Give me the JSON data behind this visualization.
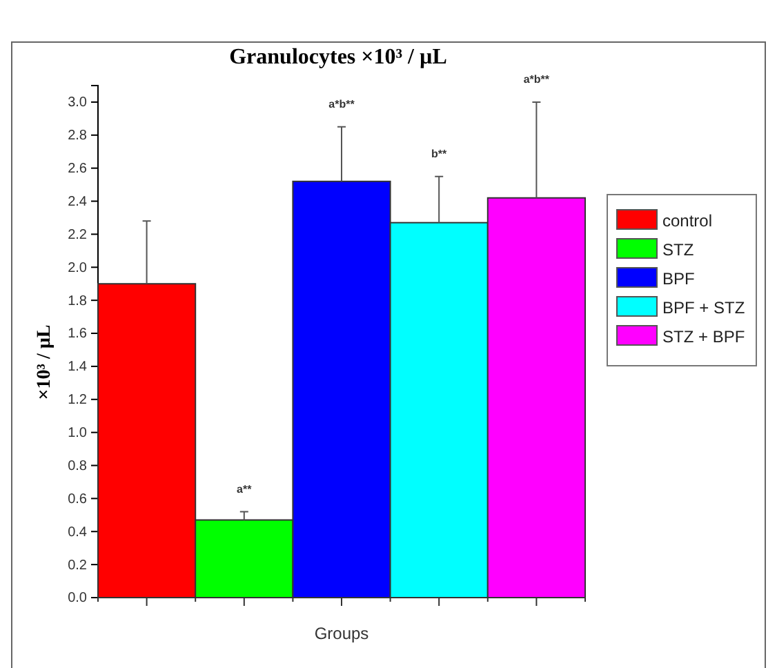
{
  "chart_data": {
    "type": "bar",
    "title": "Granulocytes  ×10³ / µL",
    "xlabel": "Groups",
    "ylabel": "×10³ / µL",
    "categories": [
      null
    ],
    "series": [
      {
        "name": "control",
        "color": "#ff0000",
        "values": [
          1.9
        ],
        "errors": [
          0.38
        ]
      },
      {
        "name": "STZ",
        "color": "#00ff00",
        "values": [
          0.47
        ],
        "errors": [
          0.05
        ]
      },
      {
        "name": "BPF",
        "color": "#0000ff",
        "values": [
          2.52
        ],
        "errors": [
          0.33
        ]
      },
      {
        "name": "BPF + STZ",
        "color": "#00ffff",
        "values": [
          2.27
        ],
        "errors": [
          0.28
        ]
      },
      {
        "name": "STZ + BPF",
        "color": "#ff00ff",
        "values": [
          2.42
        ],
        "errors": [
          0.58
        ]
      }
    ],
    "annotations": [
      "a**",
      "a*b**",
      "b**",
      "a*b**"
    ],
    "ylim": [
      0,
      3.1
    ],
    "yticks": [
      {
        "value": 0,
        "label": "0.0"
      },
      0.2,
      0.4,
      0.6,
      0.8,
      {
        "value": 1,
        "label": "1.0"
      },
      1.2,
      1.4,
      1.6,
      1.8,
      {
        "value": 2,
        "label": "2.0"
      },
      2.2,
      2.4,
      2.6,
      2.8,
      {
        "value": 3,
        "label": "3.0"
      }
    ],
    "grid": false,
    "legend": "right"
  }
}
